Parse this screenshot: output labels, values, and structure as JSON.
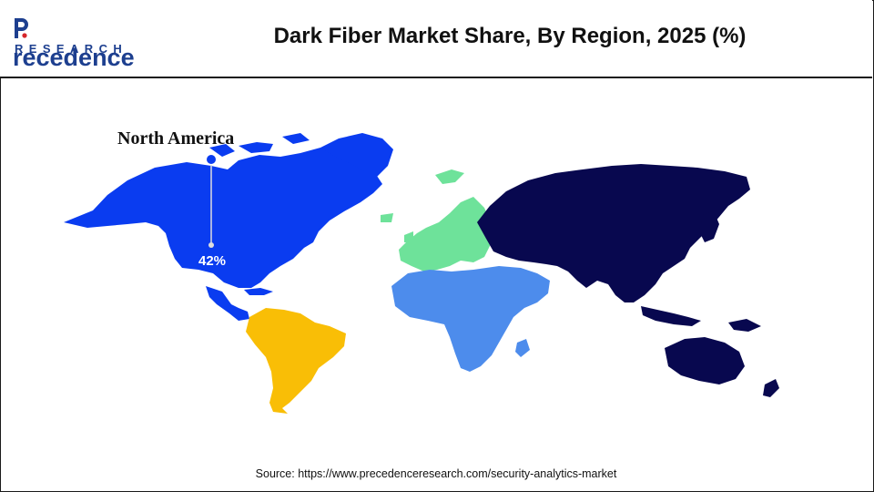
{
  "logo": {
    "wordmark": "recedence",
    "tagline": "RESEARCH"
  },
  "chart_data": {
    "type": "map",
    "title": "Dark Fiber Market Share, By Region, 2025 (%)",
    "regions": [
      {
        "name": "North America",
        "color": "#0a3cf0",
        "value_label": "42%",
        "value": 42
      },
      {
        "name": "Europe",
        "color": "#6ee29a",
        "value_label": "",
        "value": null
      },
      {
        "name": "Asia Pacific",
        "color": "#08084f",
        "value_label": "",
        "value": null
      },
      {
        "name": "Latin America",
        "color": "#f9be06",
        "value_label": "",
        "value": null
      },
      {
        "name": "Middle East and Africa",
        "color": "#4d8cec",
        "value_label": "",
        "value": null
      }
    ],
    "callout": {
      "label": "North America",
      "value": "42%"
    }
  },
  "footer": {
    "source": "Source: https://www.precedenceresearch.com/security-analytics-market"
  }
}
